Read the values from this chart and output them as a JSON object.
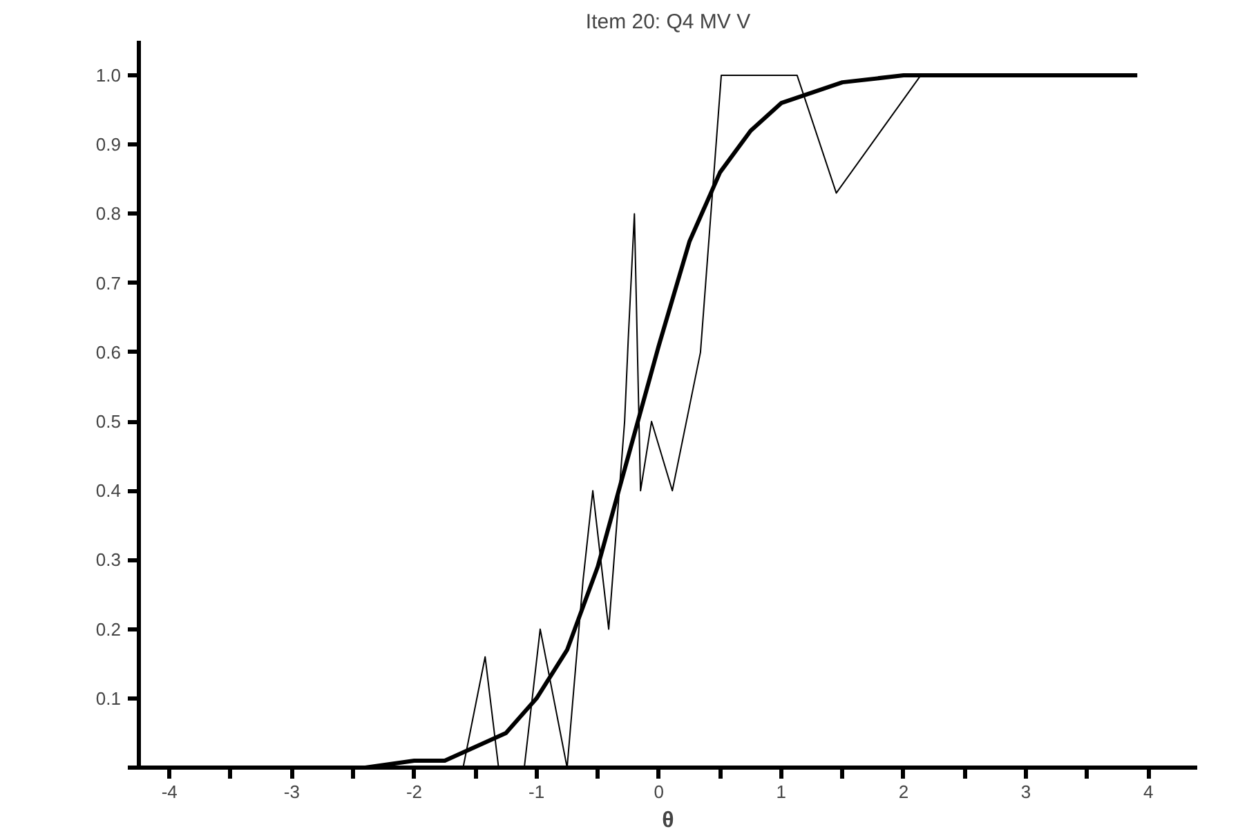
{
  "chart_data": {
    "type": "line",
    "title": "Item 20: Q4 MV V",
    "xlabel": "θ",
    "xlim": [
      -4.25,
      4.4
    ],
    "ylim": [
      0,
      1.05
    ],
    "xticks": [
      -4,
      {
        "value": -3.5,
        "label": null
      },
      -3,
      {
        "value": -2.5,
        "label": null
      },
      -2,
      {
        "value": -1.5,
        "label": null
      },
      -1,
      {
        "value": -0.5,
        "label": null
      },
      0,
      {
        "value": 0.5,
        "label": null
      },
      1,
      {
        "value": 1.5,
        "label": null
      },
      2,
      {
        "value": 2.5,
        "label": null
      },
      3,
      {
        "value": 3.5,
        "label": null
      },
      4
    ],
    "yticks": [
      {
        "value": 0,
        "label": null
      },
      0.1,
      0.2,
      0.3,
      0.4,
      0.5,
      0.6,
      0.7,
      0.8,
      0.9,
      {
        "value": 1.0,
        "label": "1.0"
      }
    ],
    "grid": false,
    "series": [
      {
        "color": "#000000",
        "x": [
          -2.4,
          -1.6,
          -1.42,
          -1.31,
          -1.1,
          -0.97,
          -0.75,
          -0.62,
          -0.54,
          -0.41,
          -0.28,
          -0.25,
          -0.2,
          -0.15,
          -0.06,
          0.11,
          0.34,
          0.51,
          1.13,
          1.45,
          2.14
        ],
        "values": [
          0,
          0,
          0.16,
          0,
          0,
          0.2,
          0,
          0.27,
          0.4,
          0.2,
          0.5,
          0.62,
          0.8,
          0.4,
          0.5,
          0.4,
          0.6,
          1.0,
          1.0,
          0.83,
          1.0
        ]
      },
      {
        "color": "#000000",
        "x": [
          -2.4,
          -2.0,
          -1.75,
          -1.5,
          -1.25,
          -1.0,
          -0.75,
          -0.5,
          -0.25,
          0,
          0.25,
          0.5,
          0.75,
          1.0,
          1.5,
          2.0,
          2.5,
          3.0,
          3.91
        ],
        "values": [
          0.0,
          0.01,
          0.01,
          0.03,
          0.05,
          0.1,
          0.17,
          0.29,
          0.45,
          0.61,
          0.76,
          0.86,
          0.92,
          0.96,
          0.99,
          1.0,
          1.0,
          1.0,
          1.0
        ]
      }
    ]
  }
}
